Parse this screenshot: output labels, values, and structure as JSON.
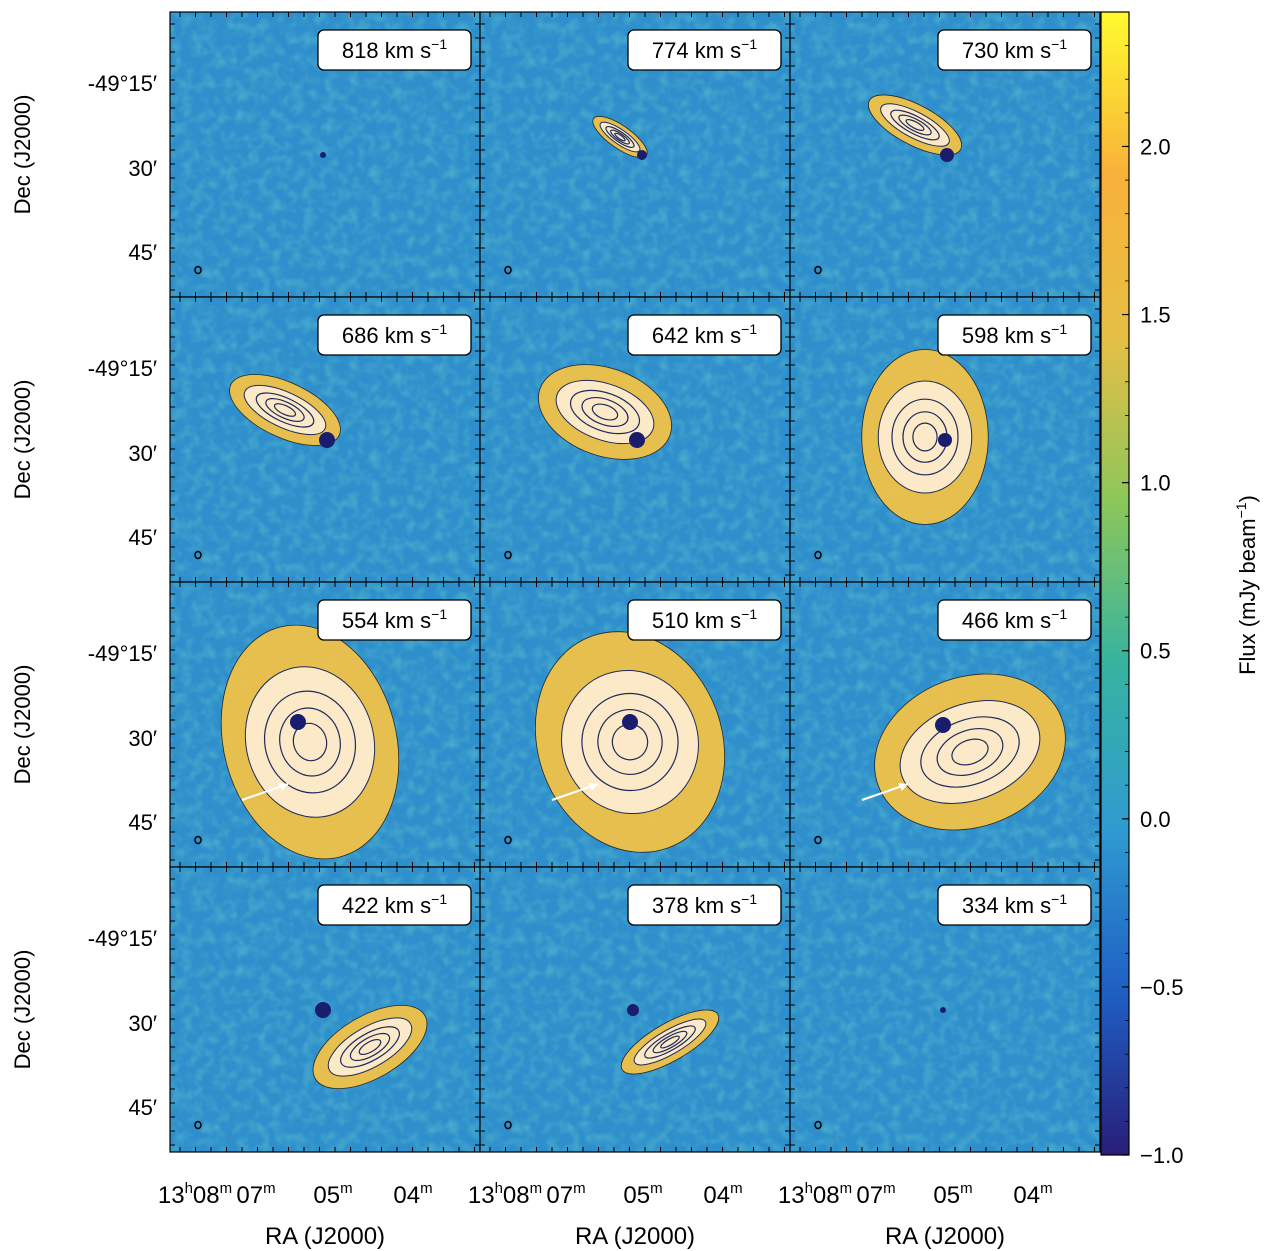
{
  "chart_data": {
    "type": "heatmap",
    "layout": {
      "rows": 4,
      "cols": 3
    },
    "xlabel": "RA (J2000)",
    "ylabel": "Dec (J2000)",
    "x_ticks": [
      {
        "h": "13",
        "m": "08"
      },
      {
        "h": "",
        "m": "07"
      },
      {
        "h": "",
        "m": "05"
      },
      {
        "h": "",
        "m": "04"
      }
    ],
    "y_ticks": [
      "-49°15′",
      "30′",
      "45′"
    ],
    "colorbar": {
      "label": "Flux (mJy beam",
      "label_exp": "−1",
      "label_close": ")",
      "ticks": [
        "2.0",
        "1.5",
        "1.0",
        "0.5",
        "0.0",
        "−0.5",
        "−1.0"
      ],
      "range": [
        -1.0,
        2.4
      ],
      "colors": [
        "#281e78",
        "#1f5fc4",
        "#2f9bd0",
        "#36b3a0",
        "#8cc65a",
        "#e6bf45",
        "#f8b13a",
        "#fffb2e"
      ]
    },
    "panels": [
      {
        "velocity": "818",
        "unit": "km s",
        "unit_exp": "−1"
      },
      {
        "velocity": "774",
        "unit": "km s",
        "unit_exp": "−1"
      },
      {
        "velocity": "730",
        "unit": "km s",
        "unit_exp": "−1"
      },
      {
        "velocity": "686",
        "unit": "km s",
        "unit_exp": "−1"
      },
      {
        "velocity": "642",
        "unit": "km s",
        "unit_exp": "−1"
      },
      {
        "velocity": "598",
        "unit": "km s",
        "unit_exp": "−1"
      },
      {
        "velocity": "554",
        "unit": "km s",
        "unit_exp": "−1"
      },
      {
        "velocity": "510",
        "unit": "km s",
        "unit_exp": "−1"
      },
      {
        "velocity": "466",
        "unit": "km s",
        "unit_exp": "−1"
      },
      {
        "velocity": "422",
        "unit": "km s",
        "unit_exp": "−1"
      },
      {
        "velocity": "378",
        "unit": "km s",
        "unit_exp": "−1"
      },
      {
        "velocity": "334",
        "unit": "km s",
        "unit_exp": "−1"
      }
    ],
    "background_color": "#2e8fcc",
    "emission_colors": {
      "outer": "#f0c248",
      "inner": "#fbe9c8",
      "contour": "#1e2a5a",
      "core": "#1a1d6e"
    }
  }
}
